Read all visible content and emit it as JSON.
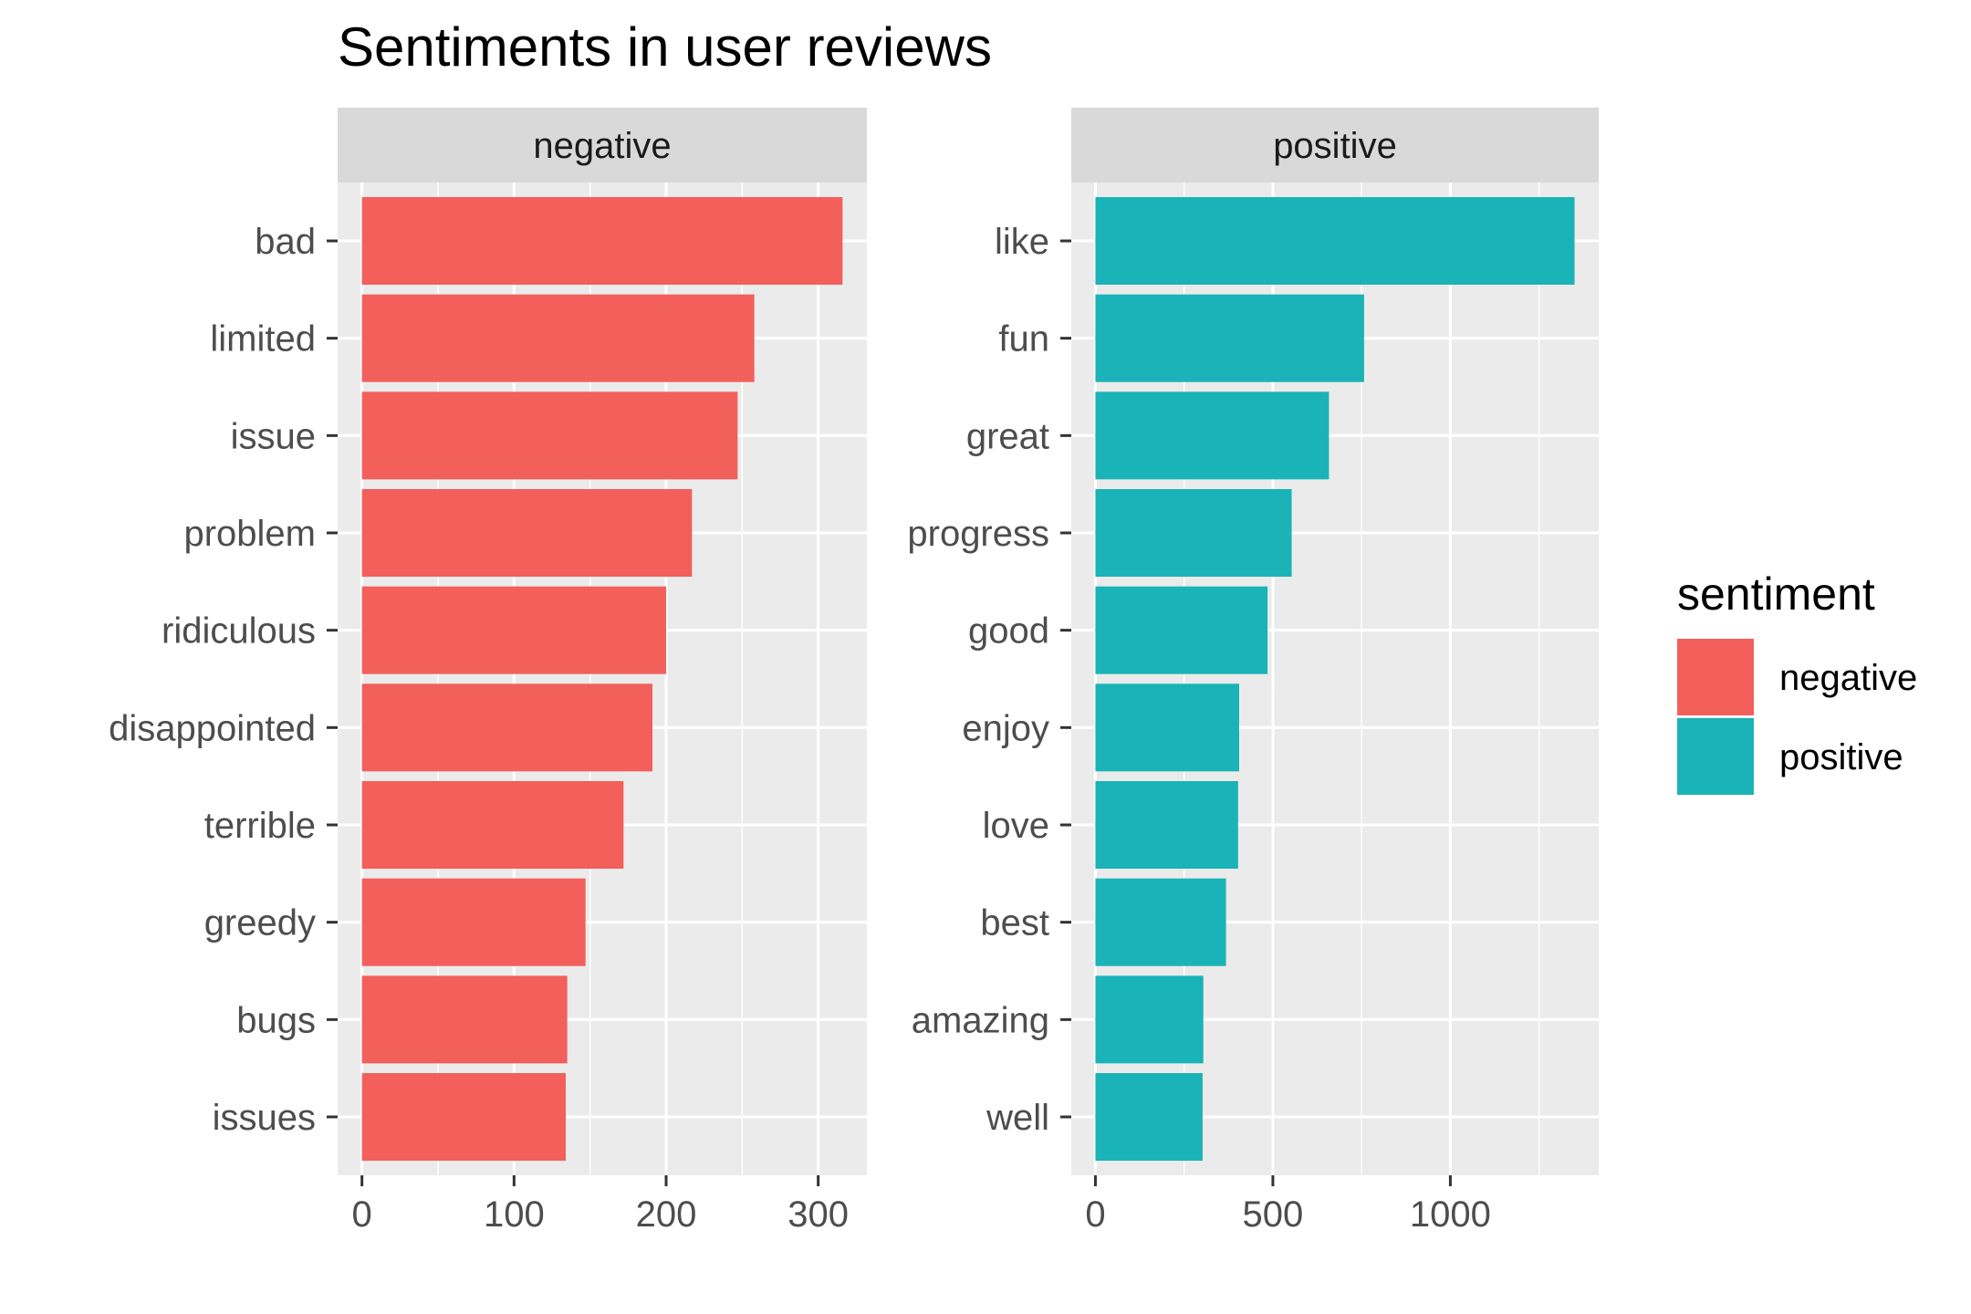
{
  "chart_data": {
    "type": "bar",
    "orientation": "horizontal",
    "title": "Sentiments in user reviews",
    "grid": true,
    "legend_position": "right",
    "legend": {
      "title": "sentiment",
      "entries": [
        {
          "label": "negative",
          "color": "#F35F5B"
        },
        {
          "label": "positive",
          "color": "#1AB3B7"
        }
      ]
    },
    "panels": [
      {
        "strip": "negative",
        "color": "#F35F5B",
        "categories": [
          "bad",
          "limited",
          "issue",
          "problem",
          "ridiculous",
          "disappointed",
          "terrible",
          "greedy",
          "bugs",
          "issues"
        ],
        "values": [
          316,
          258,
          247,
          217,
          200,
          191,
          172,
          147,
          135,
          134
        ],
        "xlim": [
          -16,
          332
        ],
        "major_ticks": [
          0,
          100,
          200,
          300
        ],
        "tick_labels": [
          "0",
          "100",
          "200",
          "300"
        ],
        "minor_ticks": [
          50,
          150,
          250
        ]
      },
      {
        "strip": "positive",
        "color": "#1AB3B7",
        "categories": [
          "like",
          "fun",
          "great",
          "progress",
          "good",
          "enjoy",
          "love",
          "best",
          "amazing",
          "well"
        ],
        "values": [
          1350,
          757,
          658,
          553,
          485,
          405,
          402,
          368,
          304,
          302
        ],
        "xlim": [
          -68,
          1418
        ],
        "major_ticks": [
          0,
          500,
          1000
        ],
        "tick_labels": [
          "0",
          "500",
          "1000"
        ],
        "minor_ticks": [
          250,
          750,
          1250
        ]
      }
    ]
  }
}
